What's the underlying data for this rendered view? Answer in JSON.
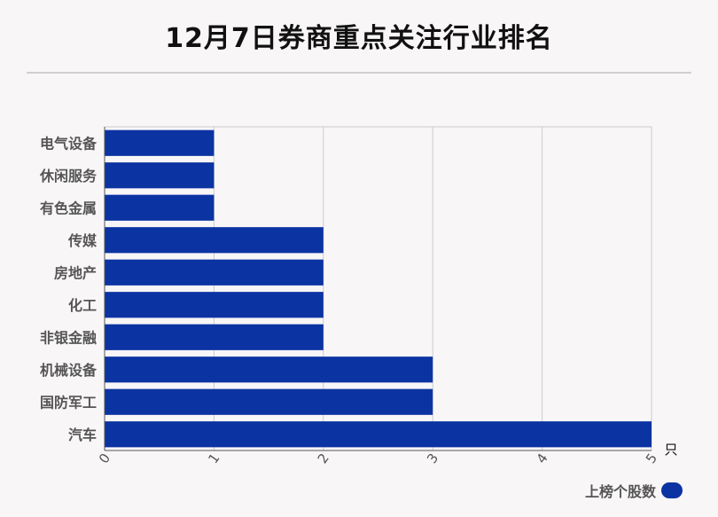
{
  "chart_data": {
    "type": "bar",
    "orientation": "horizontal",
    "title": "12月7日券商重点关注行业排名",
    "categories": [
      "电气设备",
      "休闲服务",
      "有色金属",
      "传媒",
      "房地产",
      "化工",
      "非银金融",
      "机械设备",
      "国防军工",
      "汽车"
    ],
    "series": [
      {
        "name": "上榜个股数",
        "values": [
          1,
          1,
          1,
          2,
          2,
          2,
          2,
          3,
          3,
          5
        ],
        "color": "#0b33a2"
      }
    ],
    "xlim": [
      0,
      5
    ],
    "xticks": [
      "0",
      "1",
      "2",
      "3",
      "4",
      "5"
    ],
    "xunit": "只",
    "grid": true,
    "legend_position": "bottom-right"
  }
}
